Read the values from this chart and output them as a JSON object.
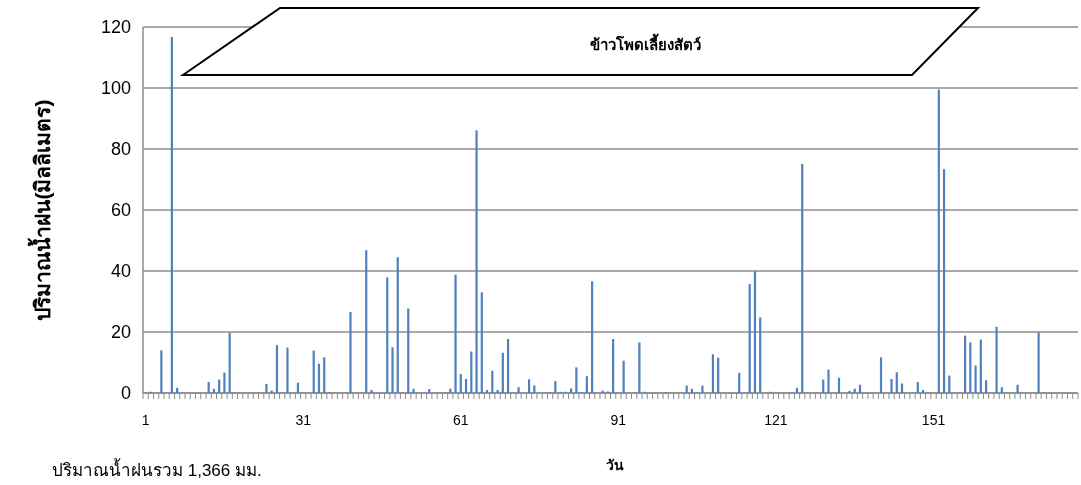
{
  "chart_data": {
    "type": "bar",
    "title": "ข้าวโพดเลี้ยงสัตว์",
    "xlabel": "วัน",
    "ylabel": "ปริมาณน้ำฝน(มิลลิเมตร)",
    "annotations": [
      "ปริมาณน้ำฝนรวม 1,366 มม."
    ],
    "categories": [
      "1",
      null,
      null,
      null,
      null,
      null,
      null,
      null,
      null,
      null,
      null,
      null,
      null,
      null,
      null,
      null,
      null,
      null,
      null,
      null,
      null,
      null,
      null,
      null,
      null,
      null,
      null,
      null,
      null,
      null,
      "31",
      null,
      null,
      null,
      null,
      null,
      null,
      null,
      null,
      null,
      null,
      null,
      null,
      null,
      null,
      null,
      null,
      null,
      null,
      null,
      null,
      null,
      null,
      null,
      null,
      null,
      null,
      null,
      null,
      null,
      "61",
      null,
      null,
      null,
      null,
      null,
      null,
      null,
      null,
      null,
      null,
      null,
      null,
      null,
      null,
      null,
      null,
      null,
      null,
      null,
      null,
      null,
      null,
      null,
      null,
      null,
      null,
      null,
      null,
      null,
      "91",
      null,
      null,
      null,
      null,
      null,
      null,
      null,
      null,
      null,
      null,
      null,
      null,
      null,
      null,
      null,
      null,
      null,
      null,
      null,
      null,
      null,
      null,
      null,
      null,
      null,
      null,
      null,
      null,
      null,
      "121",
      null,
      null,
      null,
      null,
      null,
      null,
      null,
      null,
      null,
      null,
      null,
      null,
      null,
      null,
      null,
      null,
      null,
      null,
      null,
      null,
      null,
      null,
      null,
      null,
      null,
      null,
      null,
      null,
      null,
      "151",
      null,
      null,
      null,
      null,
      null,
      null,
      null,
      null,
      null,
      null,
      null,
      null,
      null,
      null,
      null,
      null,
      null,
      null,
      null,
      null,
      null,
      null,
      null,
      null,
      null,
      null,
      null
    ],
    "values": [
      0,
      0.4,
      0,
      14,
      0,
      116.7,
      1.7,
      0,
      0,
      0,
      0,
      0,
      3.6,
      1.4,
      4.4,
      6.7,
      19.7,
      0,
      0,
      0,
      0,
      0,
      0,
      3,
      0.8,
      15.7,
      0,
      14.9,
      0,
      3.4,
      0,
      0,
      13.9,
      9.6,
      11.7,
      0.3,
      0,
      0,
      0,
      26.6,
      0,
      0,
      46.8,
      1,
      0,
      0,
      37.9,
      15,
      44.5,
      0,
      27.7,
      1.4,
      0,
      0,
      1.3,
      0,
      0,
      0,
      1.4,
      38.8,
      6.2,
      4.6,
      13.6,
      86.1,
      33,
      1,
      7.3,
      1,
      13.2,
      17.7,
      0,
      1.9,
      0,
      4.5,
      2.5,
      0,
      0,
      0.3,
      3.9,
      0.4,
      0.4,
      1.5,
      8.4,
      0.3,
      5.5,
      36.6,
      0,
      0.8,
      0.5,
      17.7,
      0,
      10.6,
      0,
      0,
      16.6,
      0.4,
      0,
      0,
      0,
      0.3,
      0,
      0,
      0,
      2.4,
      1.4,
      0.2,
      2.4,
      0,
      12.7,
      11.6,
      0,
      0,
      0,
      6.6,
      null,
      35.7,
      39.9,
      24.8,
      0,
      0.4,
      null,
      0,
      0,
      0,
      1.7,
      75.1,
      null,
      0,
      0,
      4.4,
      7.7,
      0,
      5,
      0,
      0.7,
      1.4,
      2.7,
      0,
      0,
      0,
      11.7,
      0,
      4.6,
      6.8,
      3.1,
      0,
      0,
      3.6,
      1,
      null,
      0,
      99.5,
      73.4,
      5.7,
      0,
      0,
      18.8,
      16.6,
      9,
      17.5,
      4.2,
      0,
      21.7,
      1.9,
      0,
      0,
      2.7,
      null,
      0,
      0,
      19.9,
      0.2,
      0,
      0,
      0,
      0,
      0,
      0
    ],
    "color": "#4f81bd",
    "ylim": [
      0,
      120
    ],
    "yticks": [
      0,
      20,
      40,
      60,
      80,
      100,
      120
    ],
    "grid": "y"
  }
}
